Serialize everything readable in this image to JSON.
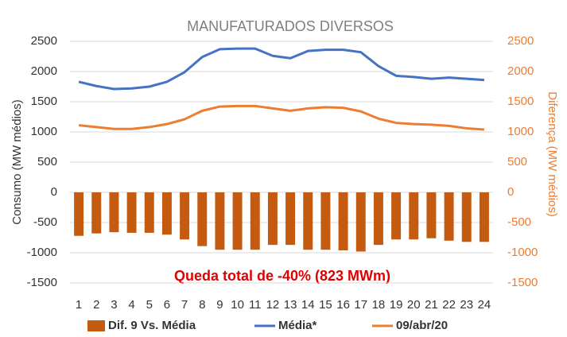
{
  "chart_data": {
    "type": "bar",
    "title": "MANUFATURADOS DIVERSOS",
    "y_label": "Consumo (MW médios)",
    "y2_label": "Diferença (MW médios)",
    "annotation": "Queda total de -40% (823 MWm)",
    "categories": [
      "1",
      "2",
      "3",
      "4",
      "5",
      "6",
      "7",
      "8",
      "9",
      "10",
      "11",
      "12",
      "13",
      "14",
      "15",
      "16",
      "17",
      "18",
      "19",
      "20",
      "21",
      "22",
      "23",
      "24"
    ],
    "series": [
      {
        "name": "Dif. 9 Vs. Média",
        "type": "bar",
        "axis": "y2",
        "color": "#c55a11",
        "values": [
          -720,
          -680,
          -660,
          -670,
          -670,
          -700,
          -780,
          -890,
          -950,
          -950,
          -950,
          -870,
          -870,
          -950,
          -950,
          -960,
          -980,
          -870,
          -780,
          -780,
          -760,
          -800,
          -820,
          -820
        ]
      },
      {
        "name": "Média*",
        "type": "line",
        "color": "#4472c4",
        "values": [
          1830,
          1760,
          1710,
          1720,
          1750,
          1830,
          1990,
          2240,
          2370,
          2380,
          2380,
          2260,
          2220,
          2340,
          2360,
          2360,
          2320,
          2090,
          1930,
          1910,
          1880,
          1900,
          1880,
          1860
        ]
      },
      {
        "name": "09/abr/20",
        "type": "line",
        "color": "#ed7d31",
        "values": [
          1110,
          1080,
          1050,
          1050,
          1080,
          1130,
          1210,
          1350,
          1420,
          1430,
          1430,
          1390,
          1350,
          1390,
          1410,
          1400,
          1340,
          1220,
          1150,
          1130,
          1120,
          1100,
          1060,
          1040
        ]
      }
    ],
    "ylim": [
      -1500,
      2500
    ],
    "yticks": [
      -1500,
      -1000,
      -500,
      0,
      500,
      1000,
      1500,
      2000,
      2500
    ],
    "y2lim": [
      -1500,
      2500
    ],
    "y2ticks": [
      -1500,
      -1000,
      -500,
      0,
      500,
      1000,
      1500,
      2000,
      2500
    ],
    "y_color": "#333333",
    "y2_color": "#ed7d31",
    "annotation_color": "#e00000",
    "grid": true,
    "legend": "bottom"
  }
}
